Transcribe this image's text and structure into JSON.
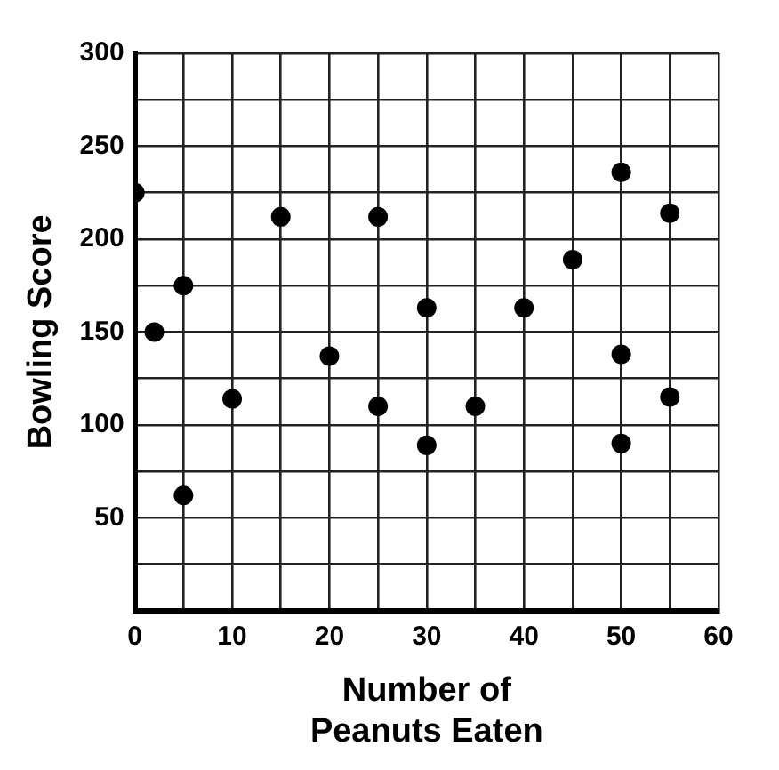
{
  "chart_data": {
    "type": "scatter",
    "xlabel": "Number of\nPeanuts Eaten",
    "ylabel": "Bowling Score",
    "x": [
      0,
      2,
      5,
      5,
      10,
      15,
      20,
      25,
      25,
      30,
      30,
      35,
      40,
      45,
      50,
      50,
      50,
      55,
      55
    ],
    "values": [
      225,
      150,
      175,
      62,
      114,
      212,
      137,
      212,
      110,
      163,
      89,
      110,
      163,
      189,
      236,
      138,
      90,
      214,
      115
    ],
    "color": "#000000",
    "marker": "circle",
    "grid": true,
    "xlim": [
      0,
      60
    ],
    "ylim": [
      0,
      300
    ],
    "xticks": [
      0,
      {
        "value": 5,
        "label": null
      },
      10,
      {
        "value": 15,
        "label": null
      },
      20,
      {
        "value": 25,
        "label": null
      },
      30,
      {
        "value": 35,
        "label": null
      },
      40,
      {
        "value": 45,
        "label": null
      },
      50,
      {
        "value": 55,
        "label": null
      },
      60
    ],
    "yticks": [
      {
        "value": 25,
        "label": null
      },
      50,
      {
        "value": 75,
        "label": null
      },
      100,
      {
        "value": 125,
        "label": null
      },
      150,
      {
        "value": 175,
        "label": null
      },
      200,
      {
        "value": 225,
        "label": null
      },
      250,
      {
        "value": 275,
        "label": null
      },
      300
    ]
  }
}
